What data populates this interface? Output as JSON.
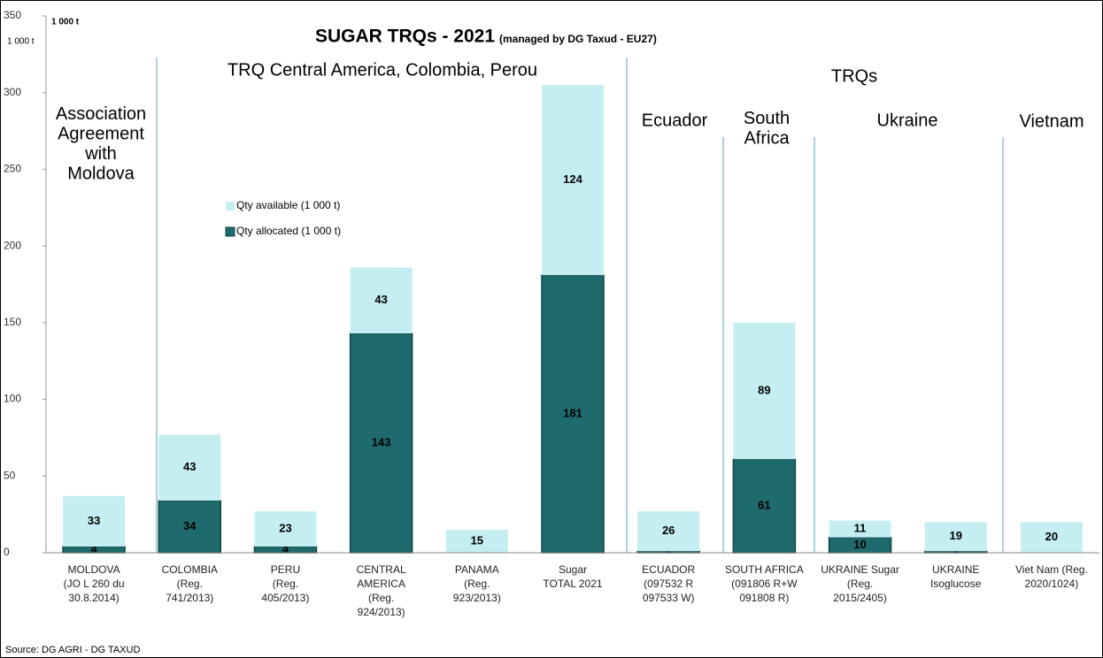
{
  "chart_data": {
    "type": "stacked-bar",
    "title": "SUGAR TRQs - 2021",
    "subtitle": "(managed by DG Taxud  -  EU27)",
    "unit_label": "1 000 t",
    "y_label": "1 000 t",
    "source": "Source: DG AGRI - DG TAXUD",
    "categories": [
      "MOLDOVA\n(JO L 260 du\n30.8.2014)",
      "COLOMBIA\n(Reg.\n741/2013)",
      "PERU\n(Reg.\n405/2013)",
      "CENTRAL\nAMERICA\n(Reg.\n924/2013)",
      "PANAMA\n(Reg.\n923/2013)",
      "Sugar\nTOTAL 2021",
      "ECUADOR\n(097532 R\n097533 W)",
      "SOUTH AFRICA\n(091806 R+W\n091808 R)",
      "UKRAINE Sugar\n(Reg.\n2015/2405)",
      "UKRAINE\nIsoglucose",
      "Viet Nam (Reg.\n2020/1024)"
    ],
    "series": [
      {
        "name": "Qty allocated (1 000 t)",
        "color": "#1f6a6c",
        "label_color": "#000000",
        "values": [
          4,
          34,
          4,
          143,
          0,
          181,
          1,
          61,
          10,
          1,
          0
        ]
      },
      {
        "name": "Qty available (1 000 t)",
        "color": "#c4eef1",
        "label_color": "#6b63a8",
        "values": [
          33,
          43,
          23,
          43,
          15,
          124,
          26,
          89,
          11,
          19,
          20
        ]
      }
    ],
    "legend_order": [
      1,
      0
    ],
    "annotations": [
      {
        "text": "Association\nAgreement\nwith\nMoldova"
      },
      {
        "text": "TRQ Central America, Colombia, Perou"
      },
      {
        "text": "TRQs"
      },
      {
        "text": "Ecuador"
      },
      {
        "text": "South\nAfrica"
      },
      {
        "text": "Ukraine"
      },
      {
        "text": "Vietnam"
      }
    ],
    "ylim": [
      0,
      350
    ],
    "yticks": [
      0,
      50,
      100,
      150,
      200,
      250,
      300,
      350
    ]
  }
}
